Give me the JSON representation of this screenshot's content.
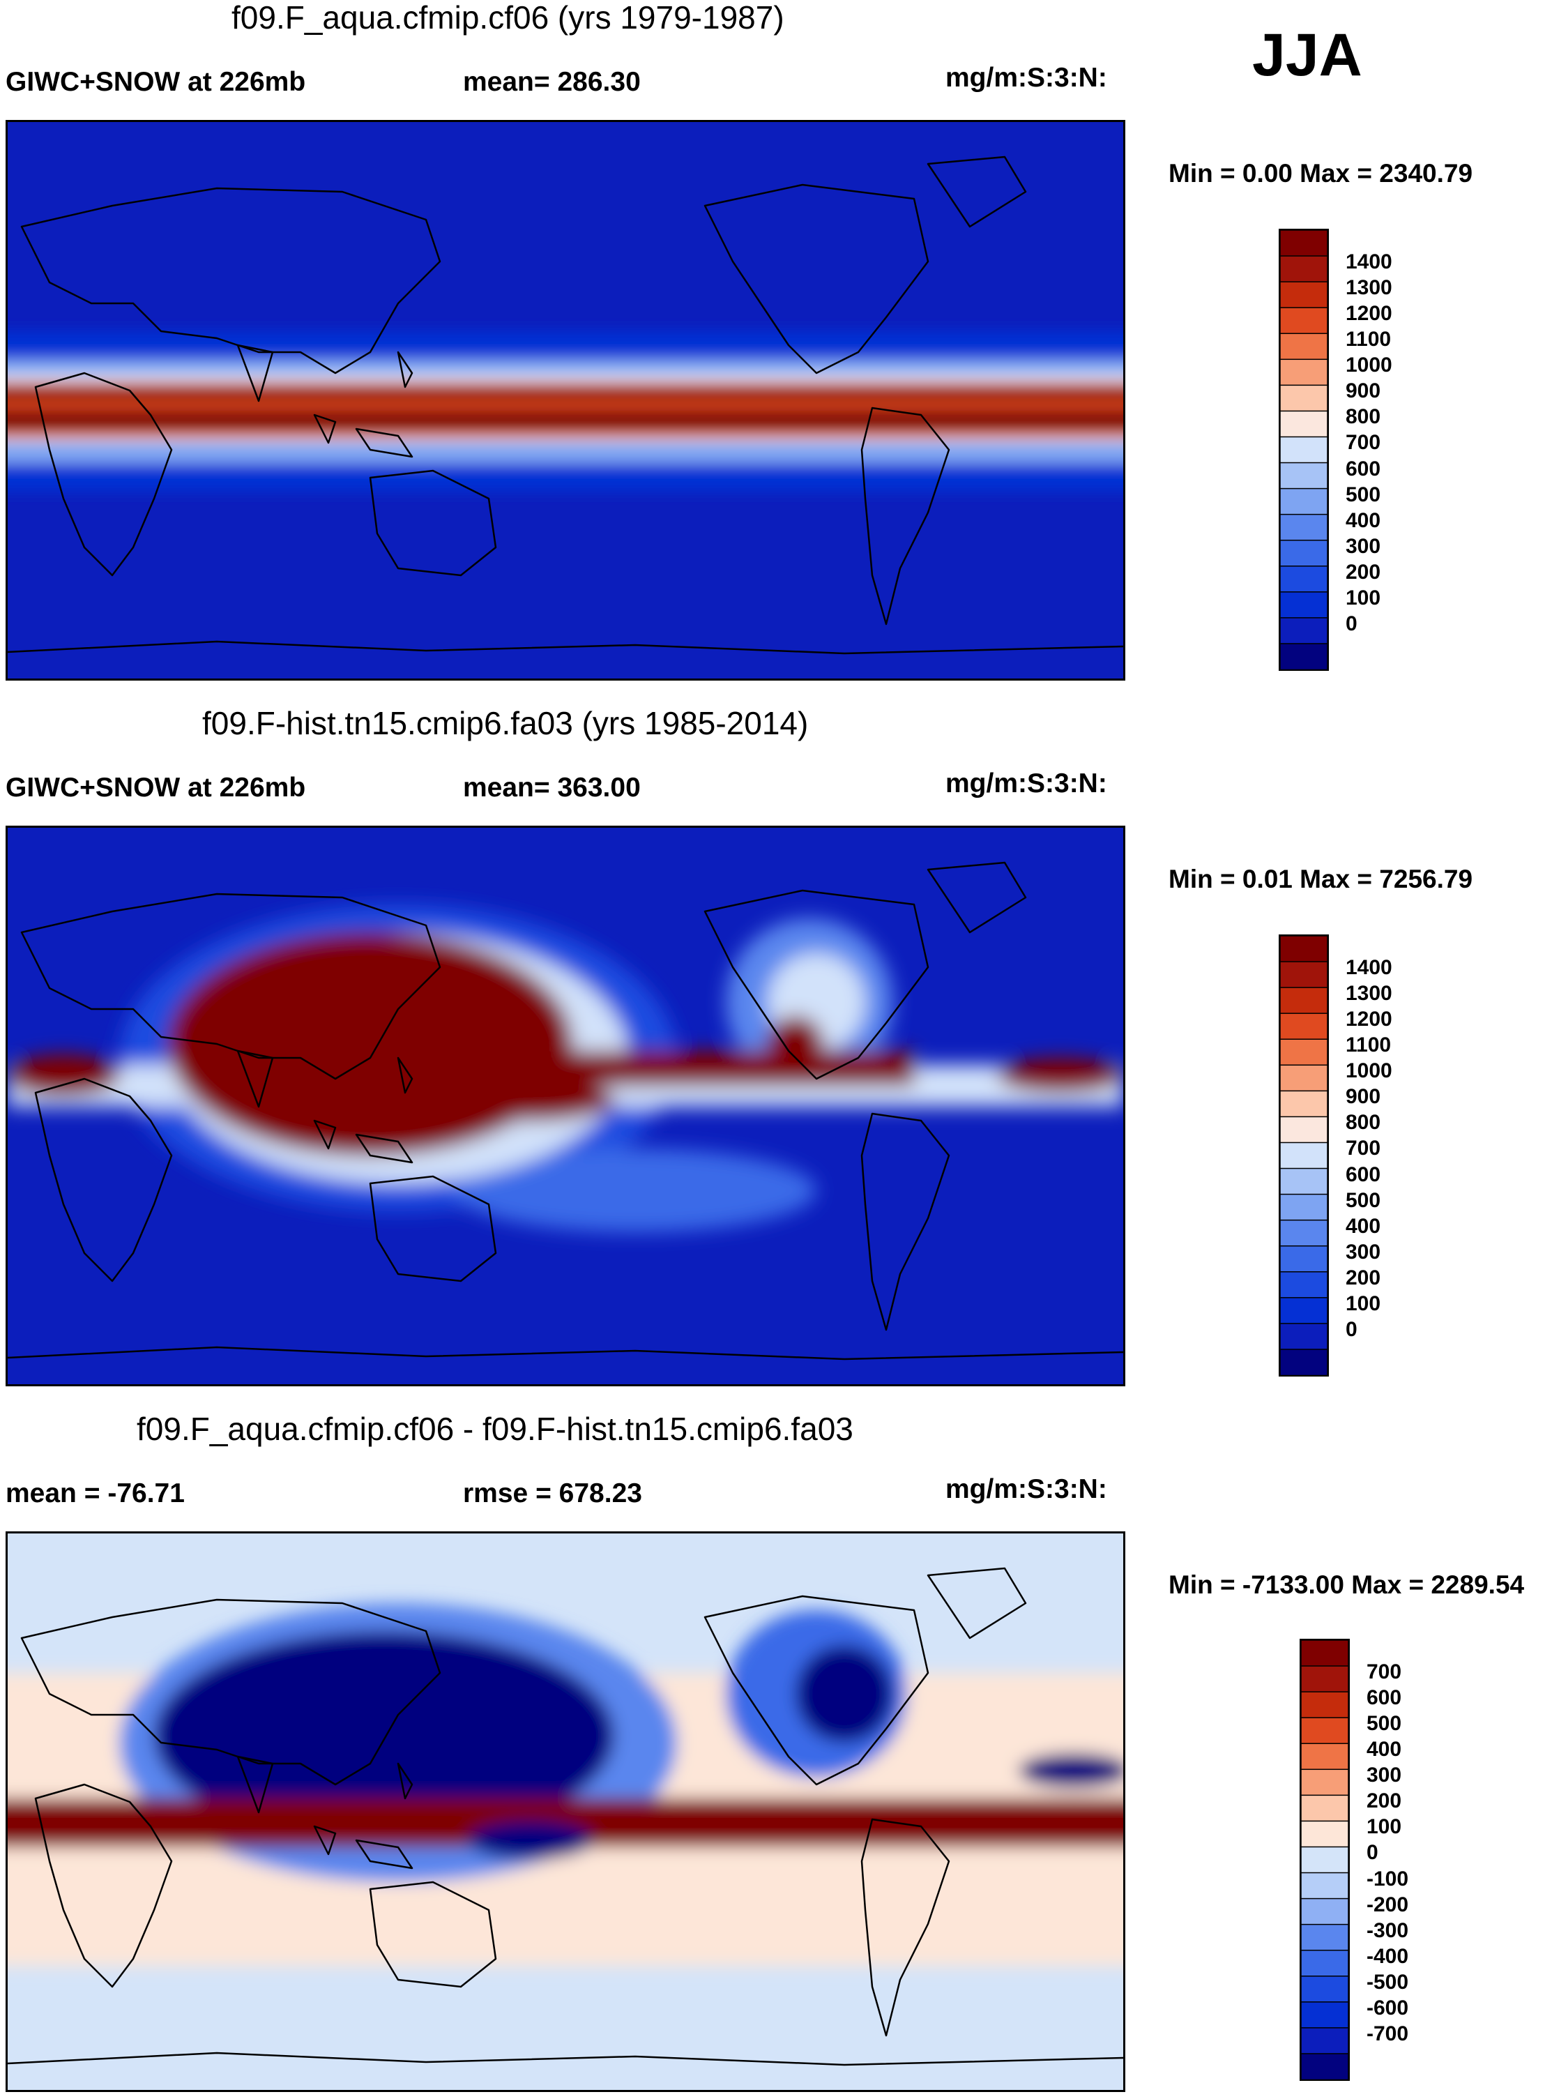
{
  "season": "JJA",
  "colors": {
    "abs_scale": [
      "#02027f",
      "#0c1ebc",
      "#0530d4",
      "#1c4be0",
      "#3a6ae8",
      "#5a86ee",
      "#7ea4f2",
      "#a7c3f6",
      "#d2e2fa",
      "#fbe7de",
      "#fcc7ab",
      "#f79e77",
      "#ef7446",
      "#e04a20",
      "#c52c0c",
      "#a0140a",
      "#7f0000"
    ],
    "diff_scale": [
      "#02027f",
      "#0c1ebc",
      "#0530d4",
      "#1c4be0",
      "#3a6ae8",
      "#5a86ee",
      "#8fb0f4",
      "#b5cef8",
      "#d4e4f9",
      "#fde6d8",
      "#fcc7ab",
      "#f79e77",
      "#ef7446",
      "#e04a20",
      "#c52c0c",
      "#a0140a",
      "#7f0000"
    ],
    "land_outline": "#000000"
  },
  "chart_data": [
    {
      "type": "heatmap",
      "title": "f09.F_aqua.cfmip.cf06 (yrs 1979-1987)",
      "variable": "GIWC+SNOW at 226mb",
      "stat1": "mean= 286.30",
      "units": "mg/m:S:3:N:",
      "minmax": "Min =   0.00 Max = 2340.79",
      "min": 0.0,
      "max": 2340.79,
      "colorbar_levels": [
        "1400",
        "1300",
        "1200",
        "1100",
        "1000",
        "900",
        "800",
        "700",
        "600",
        "500",
        "400",
        "300",
        "200",
        "100",
        "0"
      ]
    },
    {
      "type": "heatmap",
      "title": "f09.F-hist.tn15.cmip6.fa03 (yrs 1985-2014)",
      "variable": "GIWC+SNOW at 226mb",
      "stat1": "mean= 363.00",
      "units": "mg/m:S:3:N:",
      "minmax": "Min =   0.01 Max = 7256.79",
      "min": 0.01,
      "max": 7256.79,
      "colorbar_levels": [
        "1400",
        "1300",
        "1200",
        "1100",
        "1000",
        "900",
        "800",
        "700",
        "600",
        "500",
        "400",
        "300",
        "200",
        "100",
        "0"
      ]
    },
    {
      "type": "heatmap",
      "title": "f09.F_aqua.cfmip.cf06 - f09.F-hist.tn15.cmip6.fa03",
      "variable": "mean = -76.71",
      "stat1": "rmse = 678.23",
      "units": "mg/m:S:3:N:",
      "minmax": "Min = -7133.00 Max = 2289.54",
      "min": -7133.0,
      "max": 2289.54,
      "colorbar_levels": [
        "700",
        "600",
        "500",
        "400",
        "300",
        "200",
        "100",
        "0",
        "-100",
        "-200",
        "-300",
        "-400",
        "-500",
        "-600",
        "-700"
      ]
    }
  ]
}
